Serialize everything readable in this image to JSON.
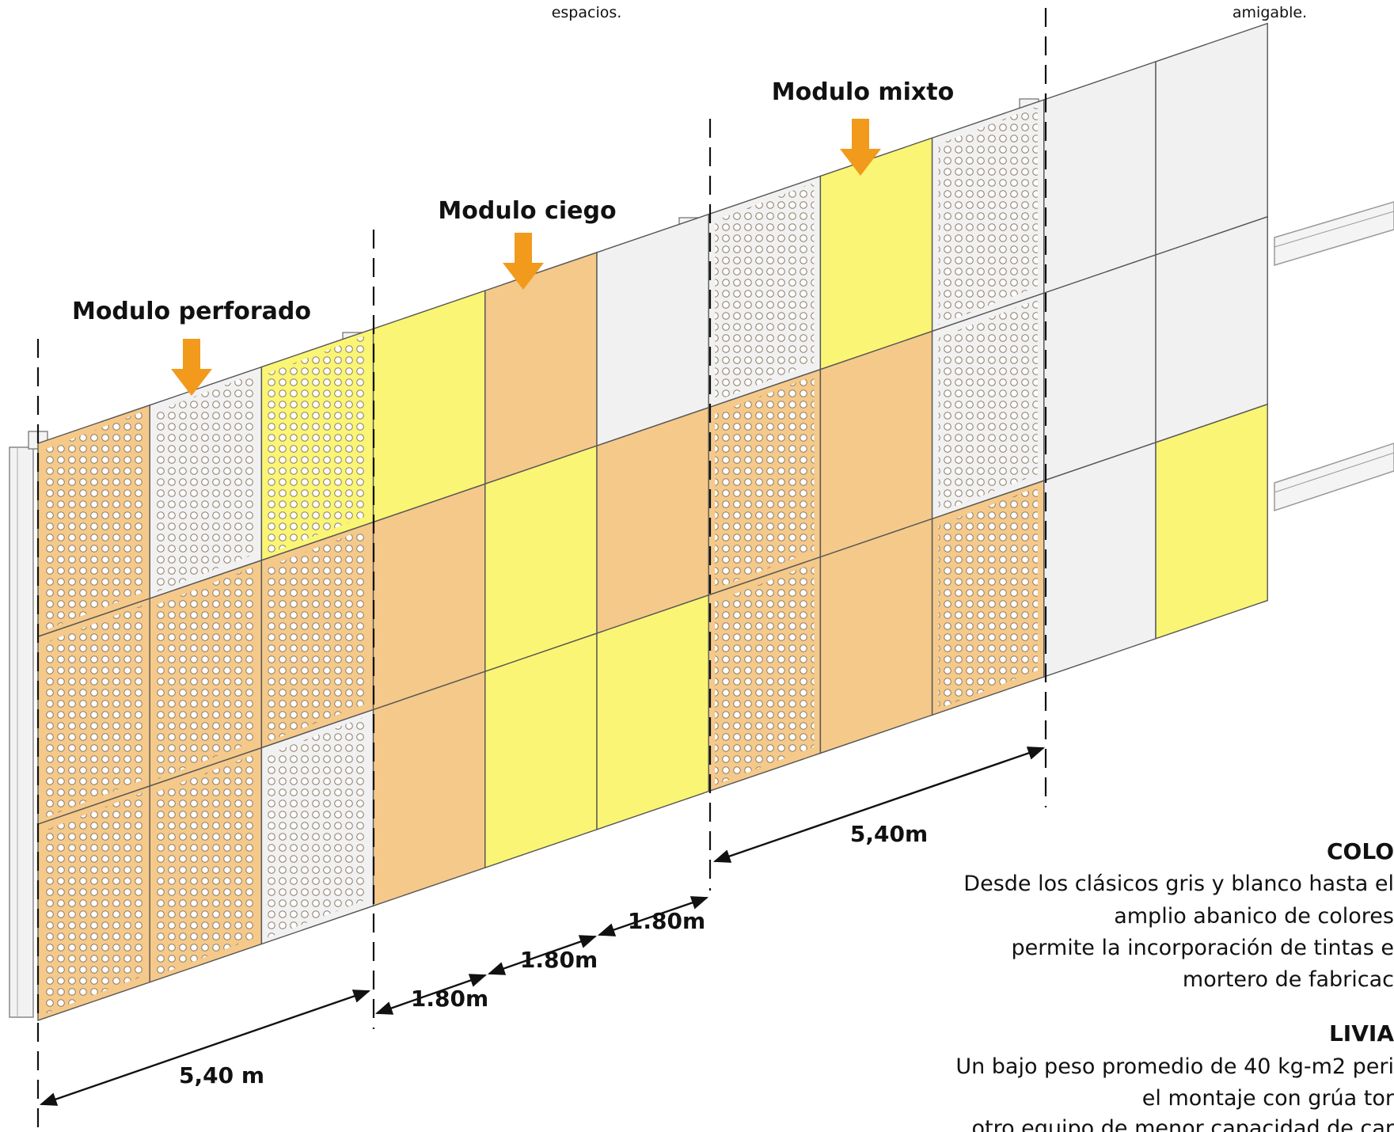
{
  "top_texts": {
    "left": "espacios.",
    "right": "amigable."
  },
  "module_labels": {
    "perforado": "Modulo perforado",
    "ciego": "Modulo ciego",
    "mixto": "Modulo mixto"
  },
  "dimensions": {
    "total_left": "5,40 m",
    "total_right": "5,40m",
    "segment_1": "1.80m",
    "segment_2": "1.80m",
    "segment_3": "1.80m"
  },
  "sections": {
    "color": {
      "heading": "COLO",
      "lines": [
        "Desde los clásicos gris y blanco hasta el",
        "amplio abanico de colores",
        "permite la incorporación de tintas e",
        "mortero de fabricac"
      ]
    },
    "liviano": {
      "heading": "LIVIA",
      "lines": [
        "Un bajo peso promedio de 40 kg-m2 peri",
        "el montaje con grúa tor",
        "otro equipo de menor capacidad de car"
      ]
    }
  },
  "colors": {
    "orange_panel": "#F4C98A",
    "yellow_panel": "#FAF574",
    "white_panel": "#F1F1F1",
    "arrow": "#F29A1C",
    "perforation_stroke": "#7a6a55"
  },
  "panel_grid": {
    "columns": 11,
    "rows": 3,
    "cells": [
      [
        "orange-perf",
        "white-perf",
        "yellow-perf",
        "yellow",
        "orange",
        "white",
        "white-perf",
        "yellow",
        "white-perf",
        "white",
        "white"
      ],
      [
        "orange-perf",
        "orange-perf",
        "orange-perf",
        "orange",
        "yellow",
        "orange",
        "orange-perf",
        "orange",
        "white-perf",
        "white",
        "white"
      ],
      [
        "orange-perf",
        "orange-perf",
        "white-perf",
        "orange",
        "yellow",
        "yellow",
        "orange-perf",
        "orange",
        "orange-perf",
        "white",
        "yellow"
      ]
    ]
  }
}
